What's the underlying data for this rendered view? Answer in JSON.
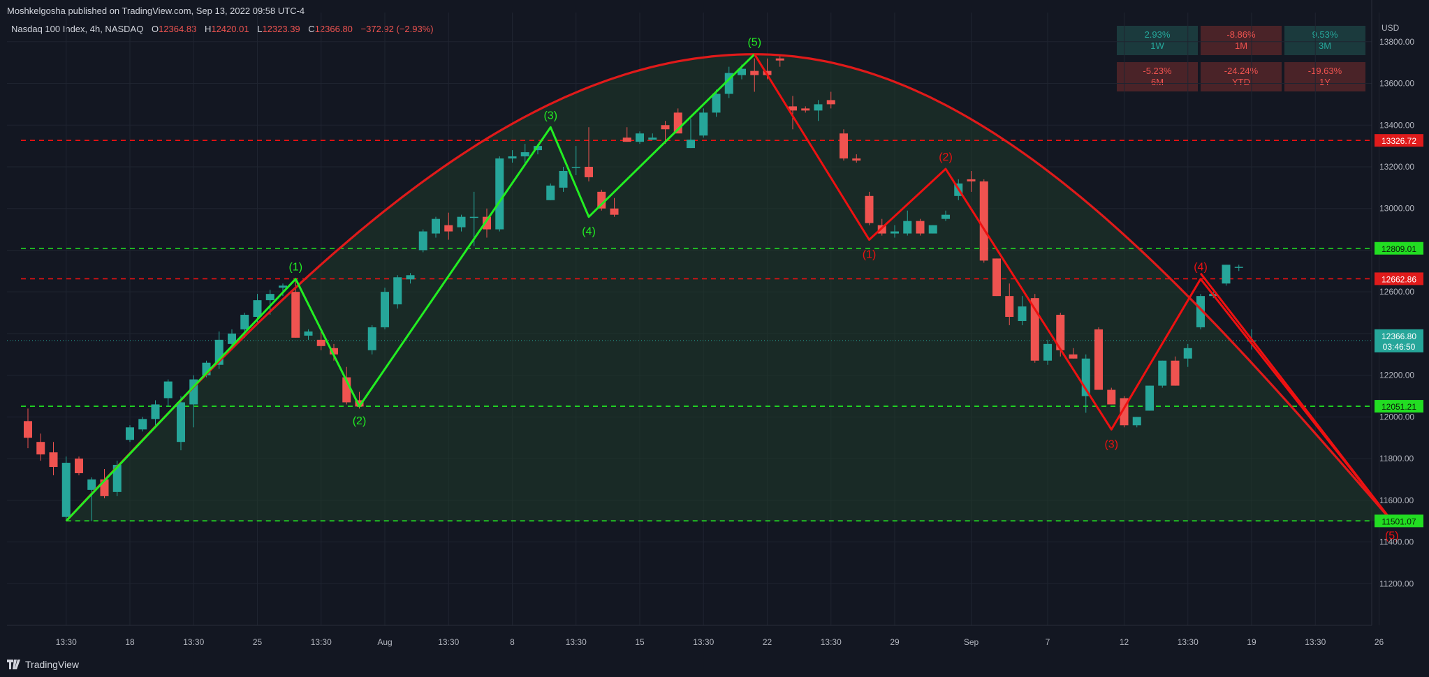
{
  "publisher_line": "Moshkelgosha published on TradingView.com, Sep 13, 2022 09:58 UTC-4",
  "legend": {
    "symbol": "Nasdaq 100 Index, 4h, NASDAQ",
    "o_label": "O",
    "o_value": "12364.83",
    "h_label": "H",
    "h_value": "12420.01",
    "l_label": "L",
    "l_value": "12323.39",
    "c_label": "C",
    "c_value": "12366.80",
    "change": "−372.92 (−2.93%)"
  },
  "performance": [
    {
      "value": "2.93%",
      "period": "1W",
      "dir": "up"
    },
    {
      "value": "-8.86%",
      "period": "1M",
      "dir": "down"
    },
    {
      "value": "9.53%",
      "period": "3M",
      "dir": "up"
    },
    {
      "value": "-5.23%",
      "period": "6M",
      "dir": "down"
    },
    {
      "value": "-24.24%",
      "period": "YTD",
      "dir": "down"
    },
    {
      "value": "-19.63%",
      "period": "1Y",
      "dir": "down"
    }
  ],
  "colors": {
    "background": "#131722",
    "up": "#26a69a",
    "down": "#ef5350",
    "bull_wave": "#22ee22",
    "bear_wave": "#ee1111",
    "arc": "#e01a1a",
    "arc_fill": "#1f3a2a",
    "grid": "#1f2430",
    "axis_text": "#b2b5be",
    "last_price_bg": "#26a69a"
  },
  "chart_data": {
    "type": "candlestick",
    "symbol": "Nasdaq 100 Index",
    "interval": "4h",
    "currency": "USD",
    "ylim": [
      11000,
      13940
    ],
    "y_ticks": [
      11200,
      11400,
      11600,
      11800,
      12000,
      12200,
      12400,
      12600,
      12800,
      13000,
      13200,
      13400,
      13600,
      13800
    ],
    "x_ticks": [
      {
        "bar": 3,
        "label": "13:30"
      },
      {
        "bar": 8,
        "label": "18"
      },
      {
        "bar": 13,
        "label": "13:30"
      },
      {
        "bar": 18,
        "label": "25"
      },
      {
        "bar": 23,
        "label": "13:30"
      },
      {
        "bar": 28,
        "label": "Aug"
      },
      {
        "bar": 33,
        "label": "13:30"
      },
      {
        "bar": 38,
        "label": "8"
      },
      {
        "bar": 43,
        "label": "13:30"
      },
      {
        "bar": 48,
        "label": "15"
      },
      {
        "bar": 53,
        "label": "13:30"
      },
      {
        "bar": 58,
        "label": "22"
      },
      {
        "bar": 63,
        "label": "13:30"
      },
      {
        "bar": 68,
        "label": "29"
      },
      {
        "bar": 74,
        "label": "Sep"
      },
      {
        "bar": 80,
        "label": "7"
      },
      {
        "bar": 86,
        "label": "12"
      },
      {
        "bar": 91,
        "label": "13:30"
      },
      {
        "bar": 96,
        "label": "19"
      },
      {
        "bar": 101,
        "label": "13:30"
      },
      {
        "bar": 106,
        "label": "26"
      }
    ],
    "candles": [
      [
        11980,
        12040,
        11850,
        11900
      ],
      [
        11880,
        11920,
        11790,
        11820
      ],
      [
        11830,
        11880,
        11720,
        11760
      ],
      [
        11520,
        11810,
        11500,
        11780
      ],
      [
        11800,
        11810,
        11720,
        11730
      ],
      [
        11650,
        11710,
        11500,
        11700
      ],
      [
        11700,
        11750,
        11610,
        11620
      ],
      [
        11640,
        11790,
        11620,
        11770
      ],
      [
        11890,
        11960,
        11880,
        11950
      ],
      [
        11940,
        12000,
        11930,
        11990
      ],
      [
        11990,
        12080,
        11960,
        12060
      ],
      [
        12090,
        12180,
        12050,
        12170
      ],
      [
        11880,
        12100,
        11840,
        12070
      ],
      [
        12060,
        12200,
        11950,
        12180
      ],
      [
        12200,
        12270,
        12190,
        12260
      ],
      [
        12250,
        12410,
        12230,
        12370
      ],
      [
        12350,
        12420,
        12330,
        12400
      ],
      [
        12420,
        12500,
        12380,
        12490
      ],
      [
        12480,
        12590,
        12450,
        12560
      ],
      [
        12560,
        12610,
        12490,
        12590
      ],
      [
        12620,
        12640,
        12580,
        12630
      ],
      [
        12600,
        12660,
        12380,
        12380
      ],
      [
        12390,
        12420,
        12370,
        12410
      ],
      [
        12370,
        12420,
        12320,
        12340
      ],
      [
        12330,
        12350,
        12270,
        12300
      ],
      [
        12190,
        12240,
        12060,
        12070
      ],
      [
        12080,
        12120,
        12040,
        12050
      ],
      [
        12320,
        12440,
        12300,
        12430
      ],
      [
        12430,
        12620,
        12420,
        12600
      ],
      [
        12540,
        12680,
        12520,
        12670
      ],
      [
        12660,
        12690,
        12640,
        12680
      ],
      [
        12800,
        12900,
        12790,
        12890
      ],
      [
        12880,
        12960,
        12860,
        12950
      ],
      [
        12920,
        12980,
        12850,
        12890
      ],
      [
        12910,
        12970,
        12890,
        12960
      ],
      [
        12960,
        13080,
        12820,
        12960
      ],
      [
        12960,
        13000,
        12860,
        12900
      ],
      [
        12900,
        13250,
        12890,
        13240
      ],
      [
        13240,
        13280,
        13220,
        13250
      ],
      [
        13250,
        13310,
        13220,
        13270
      ],
      [
        13280,
        13310,
        13260,
        13300
      ],
      [
        13040,
        13120,
        13040,
        13110
      ],
      [
        13100,
        13200,
        13080,
        13180
      ],
      [
        13200,
        13300,
        13160,
        13200
      ],
      [
        13200,
        13390,
        13130,
        13150
      ],
      [
        13080,
        13090,
        12990,
        13000
      ],
      [
        13000,
        13050,
        12960,
        12970
      ],
      [
        13340,
        13390,
        13320,
        13320
      ],
      [
        13320,
        13370,
        13310,
        13360
      ],
      [
        13330,
        13360,
        13330,
        13340
      ],
      [
        13400,
        13420,
        13310,
        13380
      ],
      [
        13460,
        13480,
        13380,
        13360
      ],
      [
        13290,
        13430,
        13290,
        13330
      ],
      [
        13350,
        13480,
        13340,
        13460
      ],
      [
        13460,
        13570,
        13440,
        13550
      ],
      [
        13550,
        13680,
        13530,
        13650
      ],
      [
        13640,
        13690,
        13620,
        13670
      ],
      [
        13660,
        13720,
        13560,
        13640
      ],
      [
        13660,
        13720,
        13620,
        13640
      ],
      [
        13720,
        13740,
        13680,
        13710
      ],
      [
        13490,
        13540,
        13380,
        13470
      ],
      [
        13480,
        13490,
        13460,
        13470
      ],
      [
        13470,
        13520,
        13420,
        13500
      ],
      [
        13520,
        13560,
        13480,
        13500
      ],
      [
        13360,
        13380,
        13230,
        13240
      ],
      [
        13240,
        13260,
        13220,
        13230
      ],
      [
        13060,
        13080,
        12920,
        12930
      ],
      [
        12920,
        12950,
        12870,
        12880
      ],
      [
        12880,
        12920,
        12860,
        12890
      ],
      [
        12880,
        12990,
        12870,
        12940
      ],
      [
        12940,
        12950,
        12870,
        12880
      ],
      [
        12880,
        12920,
        12880,
        12920
      ],
      [
        12950,
        12990,
        12940,
        12970
      ],
      [
        13060,
        13140,
        13040,
        13120
      ],
      [
        13140,
        13180,
        13080,
        13130
      ],
      [
        13130,
        13140,
        12740,
        12750
      ],
      [
        12760,
        12760,
        12580,
        12580
      ],
      [
        12580,
        12640,
        12440,
        12480
      ],
      [
        12460,
        12580,
        12440,
        12530
      ],
      [
        12570,
        12590,
        12260,
        12270
      ],
      [
        12270,
        12370,
        12250,
        12350
      ],
      [
        12490,
        12500,
        12290,
        12320
      ],
      [
        12300,
        12330,
        12280,
        12280
      ],
      [
        12100,
        12300,
        12020,
        12280
      ],
      [
        12420,
        12430,
        12130,
        12130
      ],
      [
        12130,
        12140,
        12060,
        12060
      ],
      [
        12090,
        12100,
        11950,
        11960
      ],
      [
        11960,
        12000,
        11950,
        12000
      ],
      [
        12030,
        12150,
        12030,
        12150
      ],
      [
        12150,
        12270,
        12140,
        12270
      ],
      [
        12270,
        12290,
        12150,
        12150
      ],
      [
        12280,
        12350,
        12240,
        12330
      ],
      [
        12430,
        12590,
        12420,
        12580
      ],
      [
        12580,
        12600,
        12570,
        12590
      ],
      [
        12640,
        12730,
        12630,
        12730
      ],
      [
        12720,
        12730,
        12700,
        12720
      ],
      [
        12364.83,
        12420.01,
        12323.39,
        12366.8
      ]
    ],
    "horizontal_levels": [
      {
        "value": 13326.72,
        "label": "13326.72",
        "style": "dashed",
        "color": "#ee1111"
      },
      {
        "value": 12809.01,
        "label": "12809.01",
        "style": "dashed",
        "color": "#22ee22"
      },
      {
        "value": 12662.86,
        "label": "12662.86",
        "style": "dashed",
        "color": "#ee1111"
      },
      {
        "value": 12051.21,
        "label": "12051.21",
        "style": "dashed",
        "color": "#22ee22"
      },
      {
        "value": 11501.07,
        "label": "11501.07",
        "style": "dashed",
        "color": "#22ee22"
      }
    ],
    "last_price": {
      "value": 12366.8,
      "label": "12366.80",
      "countdown": "03:46:50"
    },
    "bull_wave": {
      "color": "#22ee22",
      "points": [
        {
          "bar": 3,
          "price": 11501,
          "label": ""
        },
        {
          "bar": 21,
          "price": 12662,
          "label": "(1)"
        },
        {
          "bar": 26,
          "price": 12051,
          "label": "(2)"
        },
        {
          "bar": 41,
          "price": 13390,
          "label": "(3)"
        },
        {
          "bar": 44,
          "price": 12960,
          "label": "(4)"
        },
        {
          "bar": 57,
          "price": 13740,
          "label": "(5)"
        }
      ]
    },
    "bear_wave": {
      "color": "#ee1111",
      "points": [
        {
          "bar": 57,
          "price": 13740,
          "label": ""
        },
        {
          "bar": 66,
          "price": 12850,
          "label": "(1)"
        },
        {
          "bar": 72,
          "price": 13190,
          "label": "(2)"
        },
        {
          "bar": 85,
          "price": 11940,
          "label": "(3)"
        },
        {
          "bar": 92,
          "price": 12662,
          "label": "(4)"
        },
        {
          "bar": 107,
          "price": 11501,
          "label": "(5)"
        }
      ]
    },
    "arc_target_bar": 107,
    "arc_target_price": 11501
  },
  "axis_currency": "USD",
  "brand": "TradingView"
}
